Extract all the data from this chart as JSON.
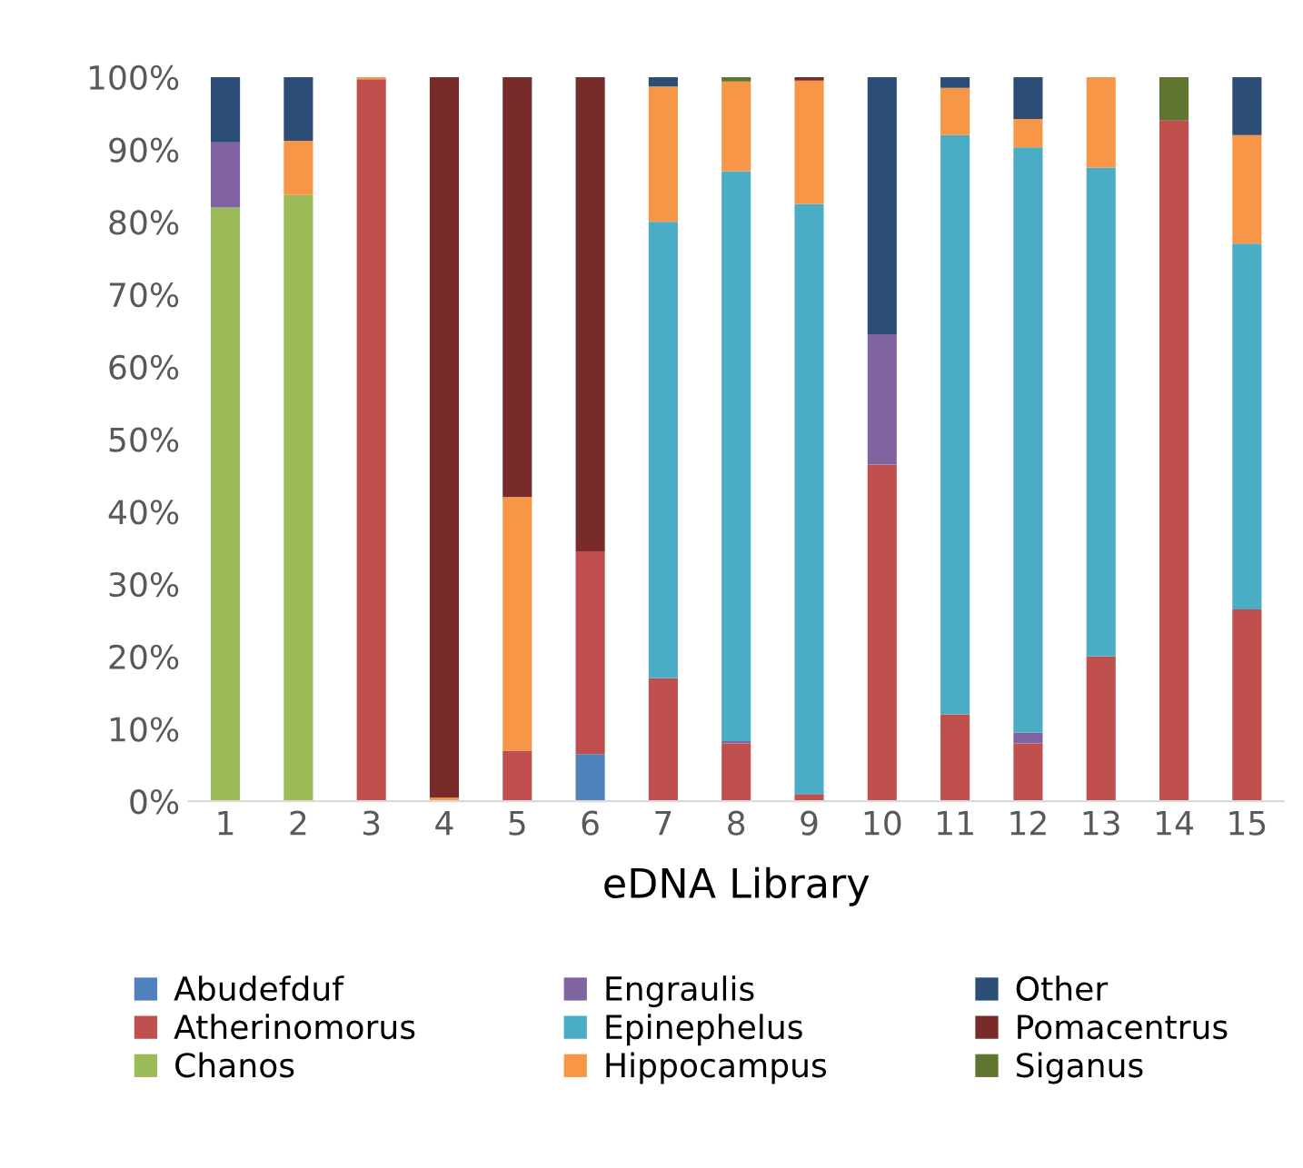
{
  "chart_data": {
    "type": "bar",
    "stacked": true,
    "xlabel": "eDNA Library",
    "categories": [
      "1",
      "2",
      "3",
      "4",
      "5",
      "6",
      "7",
      "8",
      "9",
      "10",
      "11",
      "12",
      "13",
      "14",
      "15"
    ],
    "series": [
      {
        "name": "Abudefduf",
        "color": "#4f81bd",
        "values": [
          0,
          0,
          0,
          0,
          0,
          6.5,
          0,
          0,
          0,
          0,
          0,
          0,
          0,
          0,
          0
        ]
      },
      {
        "name": "Atherinomorus",
        "color": "#c0504d",
        "values": [
          0,
          0,
          99.7,
          0,
          7,
          28,
          17,
          8,
          1,
          46.5,
          12,
          8,
          20,
          94,
          26.5
        ]
      },
      {
        "name": "Chanos",
        "color": "#9bbb59",
        "values": [
          82,
          83.7,
          0,
          0,
          0,
          0,
          0,
          0,
          0,
          0,
          0,
          0,
          0,
          0,
          0
        ]
      },
      {
        "name": "Engraulis",
        "color": "#8064a2",
        "values": [
          9,
          0,
          0,
          0,
          0,
          0,
          0,
          0.3,
          0,
          18,
          0,
          1.5,
          0,
          0,
          0
        ]
      },
      {
        "name": "Epinephelus",
        "color": "#4bacc6",
        "values": [
          0,
          0,
          0,
          0,
          0,
          0,
          63,
          78.7,
          81.5,
          0,
          80,
          80.8,
          67.5,
          0,
          50.5
        ]
      },
      {
        "name": "Hippocampus",
        "color": "#f79646",
        "values": [
          0,
          7.5,
          0.3,
          0.5,
          35,
          0,
          18.7,
          12.4,
          17,
          0,
          6.5,
          3.9,
          12.5,
          0,
          15
        ]
      },
      {
        "name": "Other",
        "color": "#2c4d75",
        "values": [
          9,
          8.8,
          0,
          0,
          0,
          0,
          1.3,
          0,
          0,
          35.5,
          1.5,
          5.8,
          0,
          0,
          8
        ]
      },
      {
        "name": "Pomacentrus",
        "color": "#772c2a",
        "values": [
          0,
          0,
          0,
          99.5,
          58,
          65.5,
          0,
          0,
          0.5,
          0,
          0,
          0,
          0,
          0,
          0
        ]
      },
      {
        "name": "Siganus",
        "color": "#5f7530",
        "values": [
          0,
          0,
          0,
          0,
          0,
          0,
          0,
          0.6,
          0,
          0,
          0,
          0,
          0,
          6,
          0
        ]
      }
    ],
    "ylim": [
      0,
      100
    ],
    "yticks": [
      {
        "value": 0,
        "label": "0%"
      },
      {
        "value": 10,
        "label": "10%"
      },
      {
        "value": 20,
        "label": "20%"
      },
      {
        "value": 30,
        "label": "30%"
      },
      {
        "value": 40,
        "label": "40%"
      },
      {
        "value": 50,
        "label": "50%"
      },
      {
        "value": 60,
        "label": "60%"
      },
      {
        "value": 70,
        "label": "70%"
      },
      {
        "value": 80,
        "label": "80%"
      },
      {
        "value": 90,
        "label": "90%"
      },
      {
        "value": 100,
        "label": "100%"
      }
    ],
    "grid": false,
    "legend": "bottom"
  }
}
